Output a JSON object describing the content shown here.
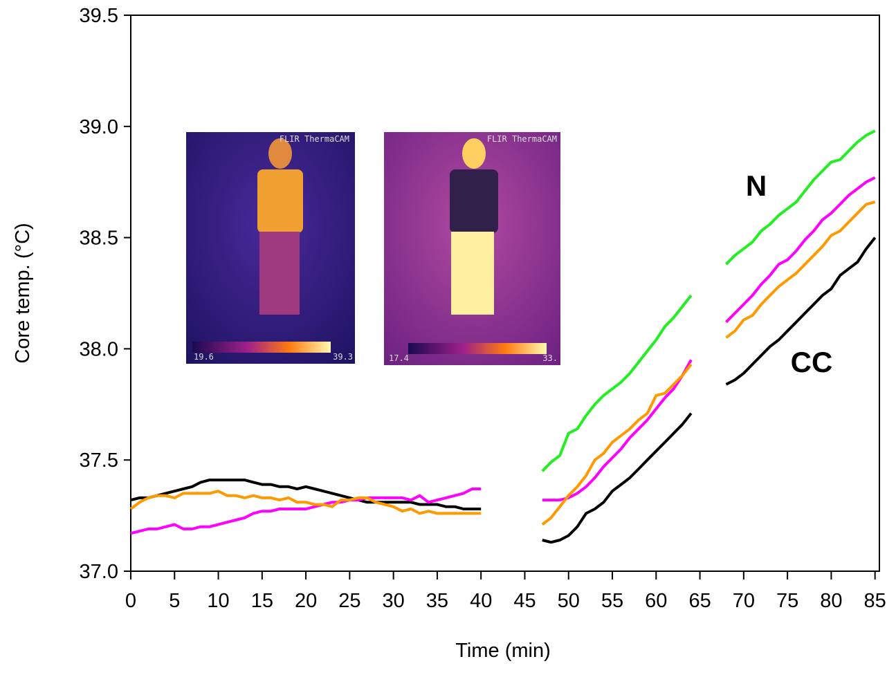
{
  "chart_data": {
    "type": "line",
    "x_label": "Time (min)",
    "y_label": "Core temp. (°C)",
    "annotations": [
      "N",
      "CC"
    ],
    "x": [
      0,
      1,
      2,
      3,
      4,
      5,
      6,
      7,
      8,
      9,
      10,
      11,
      12,
      13,
      14,
      15,
      16,
      17,
      18,
      19,
      20,
      21,
      22,
      23,
      24,
      25,
      26,
      27,
      28,
      29,
      30,
      31,
      32,
      33,
      34,
      35,
      36,
      37,
      38,
      39,
      40,
      41,
      42,
      43,
      44,
      45,
      46,
      47,
      48,
      49,
      50,
      51,
      52,
      53,
      54,
      55,
      56,
      57,
      58,
      59,
      60,
      61,
      62,
      63,
      64,
      65,
      66,
      67,
      68,
      69,
      70,
      71,
      72,
      73,
      74,
      75,
      76,
      77,
      78,
      79,
      80,
      81,
      82,
      83,
      84,
      85
    ],
    "series": [
      {
        "color": "#000000",
        "values": [
          37.32,
          37.33,
          37.33,
          37.34,
          37.35,
          37.36,
          37.37,
          37.38,
          37.4,
          37.41,
          37.41,
          37.41,
          37.41,
          37.41,
          37.4,
          37.39,
          37.39,
          37.38,
          37.38,
          37.37,
          37.38,
          37.37,
          37.36,
          37.35,
          37.34,
          37.33,
          37.32,
          37.31,
          37.31,
          37.31,
          37.31,
          37.31,
          37.31,
          37.3,
          37.3,
          37.3,
          37.29,
          37.29,
          37.28,
          37.28,
          37.28,
          null,
          null,
          null,
          null,
          null,
          null,
          37.14,
          37.13,
          37.14,
          37.16,
          37.2,
          37.26,
          37.28,
          37.31,
          37.36,
          37.39,
          37.42,
          37.46,
          37.5,
          37.54,
          37.58,
          37.62,
          37.66,
          37.71,
          null,
          null,
          null,
          37.84,
          37.86,
          37.89,
          37.93,
          37.97,
          38.01,
          38.04,
          38.08,
          38.12,
          38.16,
          38.2,
          38.24,
          38.27,
          38.33,
          38.36,
          38.39,
          38.45,
          38.5
        ]
      },
      {
        "color": "#ff00ff",
        "values": [
          37.17,
          37.18,
          37.19,
          37.19,
          37.2,
          37.21,
          37.19,
          37.19,
          37.2,
          37.2,
          37.21,
          37.22,
          37.23,
          37.24,
          37.26,
          37.27,
          37.27,
          37.28,
          37.28,
          37.28,
          37.28,
          37.29,
          37.3,
          37.31,
          37.31,
          37.32,
          37.32,
          37.33,
          37.33,
          37.33,
          37.33,
          37.33,
          37.32,
          37.34,
          37.31,
          37.32,
          37.33,
          37.34,
          37.35,
          37.37,
          37.37,
          null,
          null,
          null,
          null,
          null,
          null,
          37.32,
          37.32,
          37.32,
          37.33,
          37.35,
          37.38,
          37.42,
          37.47,
          37.51,
          37.55,
          37.6,
          37.64,
          37.68,
          37.73,
          37.78,
          37.82,
          37.88,
          37.95,
          null,
          null,
          null,
          38.12,
          38.16,
          38.2,
          38.24,
          38.29,
          38.33,
          38.38,
          38.4,
          38.44,
          38.49,
          38.53,
          38.58,
          38.61,
          38.65,
          38.69,
          38.72,
          38.75,
          38.77
        ]
      },
      {
        "color": "#ff9900",
        "values": [
          37.28,
          37.31,
          37.33,
          37.34,
          37.34,
          37.33,
          37.35,
          37.35,
          37.35,
          37.35,
          37.36,
          37.34,
          37.34,
          37.33,
          37.34,
          37.33,
          37.33,
          37.32,
          37.33,
          37.31,
          37.31,
          37.3,
          37.3,
          37.29,
          37.32,
          37.32,
          37.33,
          37.33,
          37.31,
          37.3,
          37.29,
          37.27,
          37.28,
          37.26,
          37.27,
          37.26,
          37.26,
          37.26,
          37.26,
          37.26,
          37.26,
          null,
          null,
          null,
          null,
          null,
          null,
          37.21,
          37.24,
          37.29,
          37.34,
          37.38,
          37.43,
          37.5,
          37.53,
          37.58,
          37.61,
          37.64,
          37.68,
          37.71,
          37.79,
          37.8,
          37.84,
          37.88,
          37.93,
          null,
          null,
          null,
          38.05,
          38.08,
          38.13,
          38.15,
          38.2,
          38.24,
          38.28,
          38.31,
          38.34,
          38.38,
          38.42,
          38.46,
          38.51,
          38.53,
          38.57,
          38.61,
          38.65,
          38.66
        ]
      },
      {
        "color": "#22ee22",
        "values": [
          null,
          null,
          null,
          null,
          null,
          null,
          null,
          null,
          null,
          null,
          null,
          null,
          null,
          null,
          null,
          null,
          null,
          null,
          null,
          null,
          null,
          null,
          null,
          null,
          null,
          null,
          null,
          null,
          null,
          null,
          null,
          null,
          null,
          null,
          null,
          null,
          null,
          null,
          null,
          null,
          null,
          null,
          null,
          null,
          null,
          null,
          null,
          37.45,
          37.49,
          37.52,
          37.62,
          37.64,
          37.7,
          37.75,
          37.79,
          37.82,
          37.85,
          37.89,
          37.94,
          37.99,
          38.04,
          38.1,
          38.14,
          38.19,
          38.24,
          null,
          null,
          null,
          38.38,
          38.42,
          38.45,
          38.48,
          38.53,
          38.56,
          38.6,
          38.63,
          38.66,
          38.71,
          38.76,
          38.8,
          38.84,
          38.85,
          38.89,
          38.93,
          38.96,
          38.98
        ]
      }
    ],
    "xlim": [
      0,
      85.5
    ],
    "ylim": [
      37.0,
      39.5
    ],
    "xticks": [
      0,
      5,
      10,
      15,
      20,
      25,
      30,
      35,
      40,
      45,
      50,
      55,
      60,
      65,
      70,
      75,
      80,
      85
    ],
    "yticks": [
      {
        "value": 37,
        "label": "37.0"
      },
      37.5,
      {
        "value": 38,
        "label": "38.0"
      },
      38.5,
      {
        "value": 39,
        "label": "39.0"
      },
      39.5
    ],
    "insets": [
      {
        "brand": "FLIR ThermaCAM",
        "scale_min": "19.6",
        "scale_max": "39.3"
      },
      {
        "brand": "FLIR ThermaCAM",
        "scale_min": "17.4",
        "scale_max": "33."
      }
    ]
  }
}
